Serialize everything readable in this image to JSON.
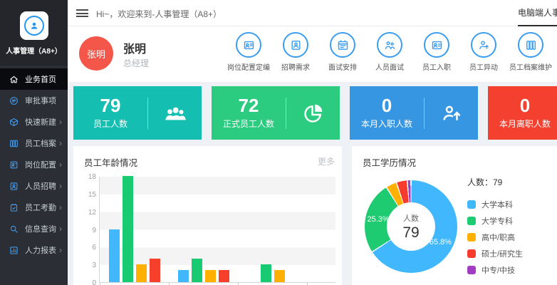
{
  "colors": {
    "accent": "#3b9df0",
    "sidebar_bg": "#2b2e34",
    "sidebar_active_bg": "#0a0b0e",
    "avatar": "#f4564a",
    "page_bg": "#eef1f5"
  },
  "sidebar": {
    "logo_title": "人事管理（A8+）",
    "logo_icon": "user-circle-icon",
    "items": [
      {
        "label": "业务首页",
        "icon": "home-icon",
        "active": true,
        "arrow": false
      },
      {
        "label": "审批事项",
        "icon": "approval-icon",
        "active": false,
        "arrow": false
      },
      {
        "label": "快速新建",
        "icon": "cube-icon",
        "active": false,
        "arrow": true
      },
      {
        "label": "员工档案",
        "icon": "archive-icon",
        "active": false,
        "arrow": true
      },
      {
        "label": "岗位配置",
        "icon": "badge-icon",
        "active": false,
        "arrow": true
      },
      {
        "label": "人员招聘",
        "icon": "recruit-icon",
        "active": false,
        "arrow": true
      },
      {
        "label": "员工考勤",
        "icon": "attendance-icon",
        "active": false,
        "arrow": true
      },
      {
        "label": "信息查询",
        "icon": "search-icon",
        "active": false,
        "arrow": true
      },
      {
        "label": "人力报表",
        "icon": "report-icon",
        "active": false,
        "arrow": true
      }
    ],
    "arrow_glyph": "›"
  },
  "topbar": {
    "greeting": "Hi~，欢迎来到-人事管理（A8+）",
    "tab": "电脑端人事管理"
  },
  "user": {
    "avatar_text": "张明",
    "name": "张明",
    "role": "总经理"
  },
  "quick_actions": [
    {
      "label": "岗位配置定编",
      "icon": "org-card-icon"
    },
    {
      "label": "招聘需求",
      "icon": "person-card-icon"
    },
    {
      "label": "面试安排",
      "icon": "calendar-icon"
    },
    {
      "label": "人员面试",
      "icon": "interview-icon"
    },
    {
      "label": "员工入职",
      "icon": "id-card-icon"
    },
    {
      "label": "员工异动",
      "icon": "person-move-icon"
    },
    {
      "label": "员工档案维护",
      "icon": "files-icon"
    }
  ],
  "stats": [
    {
      "value": "79",
      "label": "员工人数",
      "color": "#14bfb2",
      "icon": "people-group-icon"
    },
    {
      "value": "72",
      "label": "正式员工人数",
      "color": "#2bcb80",
      "icon": "pie-icon"
    },
    {
      "value": "0",
      "label": "本月入职人数",
      "color": "#3796e2",
      "icon": "person-up-icon"
    },
    {
      "value": "0",
      "label": "本月离职人数",
      "color": "#f4402f",
      "icon": "person-up-icon"
    }
  ],
  "age_chart": {
    "title": "员工年龄情况",
    "more": "更多"
  },
  "edu_chart": {
    "title": "员工学历情况",
    "legend_title": "人数：79",
    "center_label": "人数",
    "center_value": "79"
  },
  "chart_data": [
    {
      "type": "bar",
      "title": "员工年龄情况",
      "categories": [
        "",
        "",
        ""
      ],
      "series": [
        {
          "name": "blue",
          "color": "#41b8fd",
          "values": [
            9,
            2,
            0
          ]
        },
        {
          "name": "green",
          "color": "#18cb72",
          "values": [
            18,
            4,
            3
          ]
        },
        {
          "name": "orange",
          "color": "#ffb000",
          "values": [
            3,
            2,
            2
          ]
        },
        {
          "name": "red",
          "color": "#f6402c",
          "values": [
            4,
            2,
            0
          ]
        }
      ],
      "ylim": [
        0,
        18
      ],
      "yticks": [
        0,
        3,
        6,
        9,
        12,
        15,
        18
      ],
      "grid": "striped-horizontal",
      "legend_position": "none",
      "x_labels_cut_off": true
    },
    {
      "type": "pie",
      "title": "员工学历情况",
      "donut": true,
      "labels": [
        "大学本科",
        "大学专科",
        "高中/职高",
        "硕士/研究生",
        "中专/中技"
      ],
      "values_pct": [
        65.8,
        25.3,
        3.8,
        3.8,
        1.3
      ],
      "colors": [
        "#41b8fd",
        "#1ecb70",
        "#ffb001",
        "#f63c2c",
        "#a23cc3"
      ],
      "shown_slice_labels": [
        "65.8%",
        "25.3%"
      ],
      "center_label": "人数",
      "center_value": 79,
      "legend_title": "人数：79",
      "legend_position": "right"
    }
  ]
}
